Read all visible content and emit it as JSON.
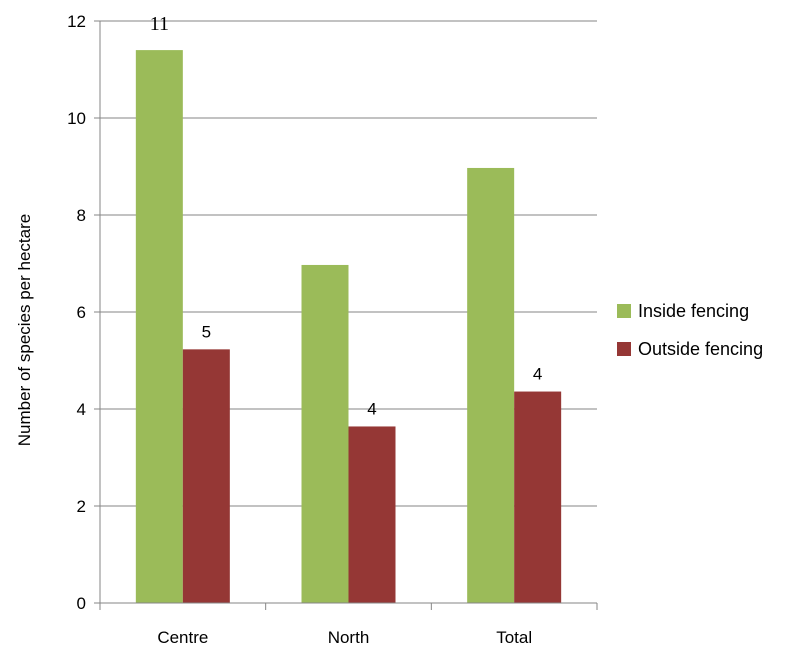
{
  "chart_data": {
    "type": "bar",
    "title": "",
    "xlabel": "",
    "ylabel": "Number of species per hectare",
    "categories": [
      "Centre",
      "North",
      "Total"
    ],
    "ylim": [
      0,
      12
    ],
    "yticks": [
      0,
      2,
      4,
      6,
      8,
      10,
      12
    ],
    "grid": true,
    "legend_position": "right",
    "series": [
      {
        "name": "Inside fencing",
        "color": "#9BBB59",
        "values": [
          11.4,
          6.97,
          8.97
        ],
        "data_labels": [
          "11",
          "",
          ""
        ]
      },
      {
        "name": "Outside fencing",
        "color": "#953735",
        "values": [
          5.23,
          3.64,
          4.36
        ],
        "data_labels": [
          "5",
          "4",
          "4"
        ]
      }
    ]
  }
}
